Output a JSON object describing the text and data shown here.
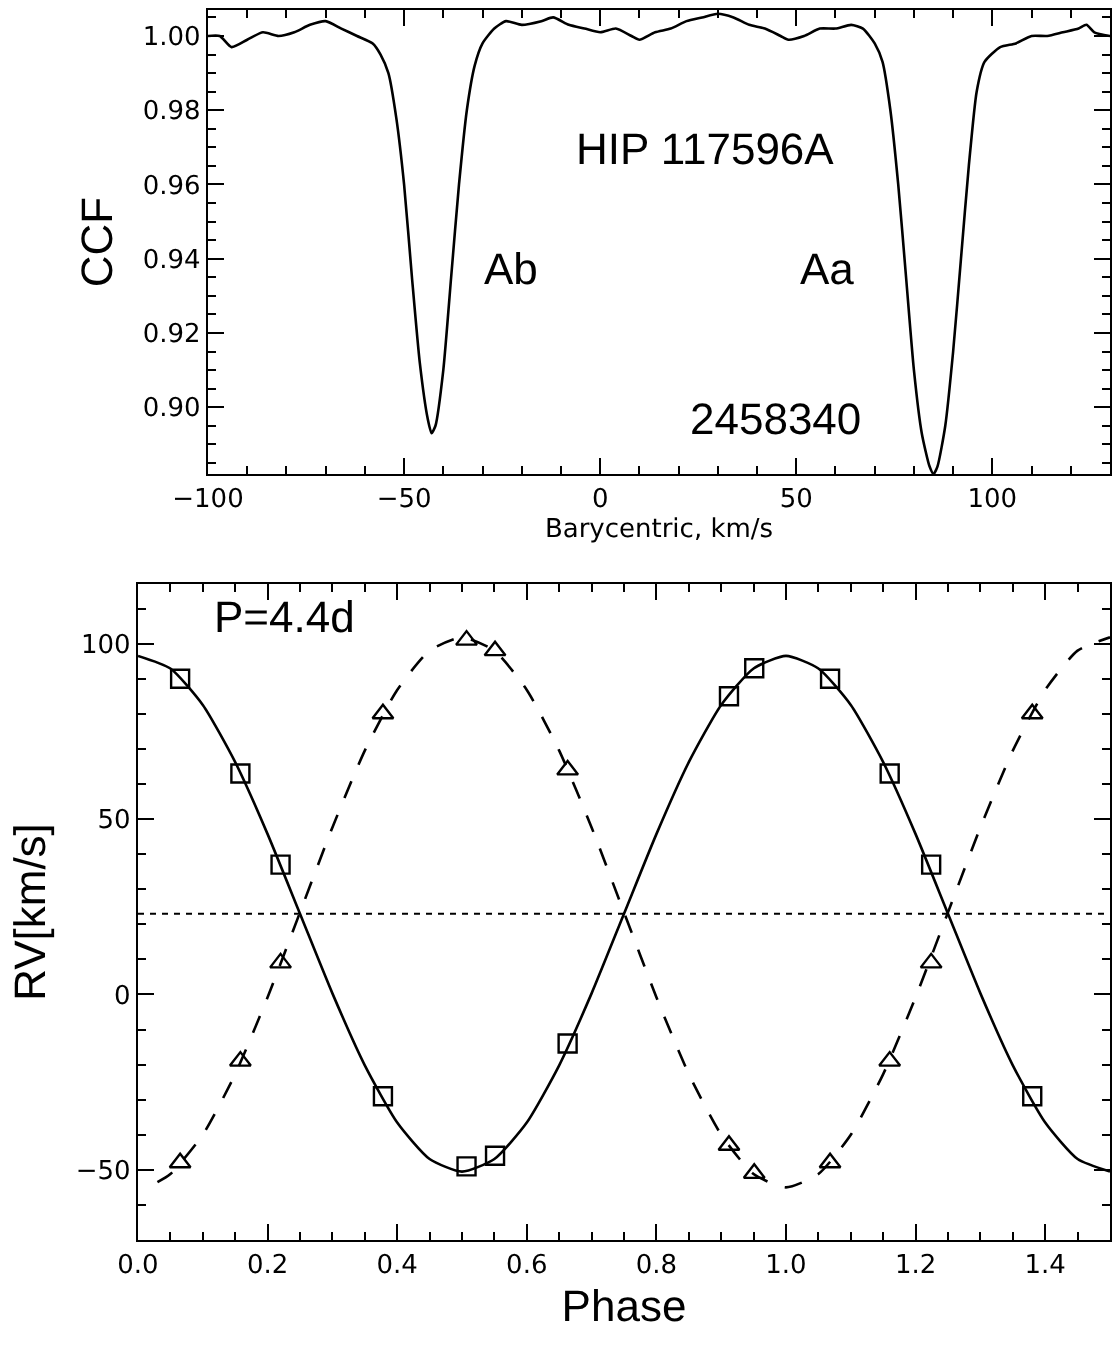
{
  "chart_data": [
    {
      "type": "line",
      "xlabel": "Barycentric, km/s",
      "ylabel": "CCF",
      "color": "#000000",
      "xlim": [
        -100,
        130
      ],
      "ylim": [
        0.882,
        1.007
      ],
      "xticks": [
        -100,
        -50,
        0,
        50,
        100
      ],
      "yticks": [
        {
          "value": 0.9,
          "label": "0.90"
        },
        {
          "value": 0.92,
          "label": "0.92"
        },
        {
          "value": 0.94,
          "label": "0.94"
        },
        {
          "value": 0.96,
          "label": "0.96"
        },
        {
          "value": 0.98,
          "label": "0.98"
        },
        {
          "value": 1.0,
          "label": "1.00"
        }
      ],
      "x": [
        -100,
        -97,
        -94,
        -90,
        -86,
        -82,
        -78,
        -74,
        -70,
        -66,
        -62,
        -58,
        -56,
        -54,
        -52,
        -50,
        -48,
        -46,
        -44,
        -43,
        -42,
        -40,
        -38,
        -36,
        -34,
        -32,
        -30,
        -27,
        -24,
        -20,
        -15,
        -12,
        -8,
        -4,
        0,
        4,
        8,
        10,
        14,
        18,
        22,
        26,
        30,
        34,
        38,
        42,
        46,
        48,
        52,
        56,
        60,
        64,
        67,
        70,
        72,
        74,
        76,
        78,
        80,
        82,
        84,
        85,
        86,
        88,
        90,
        92,
        94,
        96,
        98,
        102,
        106,
        110,
        114,
        118,
        122,
        124,
        126,
        130
      ],
      "values": [
        1.0,
        1.0,
        0.997,
        0.999,
        1.001,
        1.0,
        1.001,
        1.003,
        1.004,
        1.002,
        1.0,
        0.998,
        0.995,
        0.99,
        0.978,
        0.96,
        0.935,
        0.912,
        0.897,
        0.893,
        0.895,
        0.91,
        0.935,
        0.96,
        0.98,
        0.992,
        0.998,
        1.002,
        1.004,
        1.003,
        1.004,
        1.005,
        1.003,
        1.002,
        1.001,
        1.002,
        1.0,
        0.999,
        1.001,
        1.002,
        1.004,
        1.005,
        1.006,
        1.005,
        1.003,
        1.002,
        1.0,
        0.999,
        1.0,
        1.002,
        1.002,
        1.003,
        1.002,
        0.998,
        0.993,
        0.98,
        0.96,
        0.935,
        0.91,
        0.893,
        0.884,
        0.882,
        0.884,
        0.895,
        0.915,
        0.94,
        0.965,
        0.985,
        0.993,
        0.997,
        0.998,
        1.0,
        1.0,
        1.001,
        1.002,
        1.003,
        1.001,
        1.0
      ],
      "annotations": [
        "HIP 117596A",
        "Ab",
        "Aa",
        "2458340"
      ]
    },
    {
      "type": "scatter",
      "xlabel": "Phase",
      "ylabel": "RV[km/s]",
      "xlim": [
        0,
        1.5
      ],
      "ylim": [
        -70,
        117
      ],
      "xticks": [
        {
          "value": 0,
          "label": "0.0"
        },
        0.2,
        0.4,
        0.6,
        0.8,
        {
          "value": 1,
          "label": "1.0"
        },
        1.2,
        1.4
      ],
      "yticks": [
        -50,
        0,
        50,
        100
      ],
      "annotations": [
        "P=4.4d"
      ],
      "ref_lines": [
        {
          "axis": "y",
          "value": 23,
          "line_style": "dotted",
          "color": "#000000"
        }
      ],
      "series": [
        {
          "type": "scatter",
          "marker": "square",
          "color": "#000000",
          "x": [
            0.065,
            0.158,
            0.22,
            0.378,
            0.507,
            0.551,
            0.663,
            0.912,
            0.951,
            1.068,
            1.16,
            1.224,
            1.38
          ],
          "values": [
            90,
            63,
            37,
            -29,
            -49,
            -46,
            -14,
            85,
            93,
            90,
            63,
            37,
            -29
          ]
        },
        {
          "type": "scatter",
          "marker": "triangle",
          "color": "#000000",
          "x": [
            0.065,
            0.158,
            0.22,
            0.378,
            0.507,
            0.551,
            0.663,
            0.912,
            0.951,
            1.068,
            1.16,
            1.224,
            1.38
          ],
          "values": [
            -48,
            -19,
            9,
            80,
            101,
            98,
            64,
            -43,
            -51,
            -48,
            -19,
            9,
            80
          ]
        },
        {
          "type": "line",
          "line_style": "solid",
          "color": "#000000",
          "x": [
            0,
            0.05,
            0.1,
            0.15,
            0.2,
            0.25,
            0.3,
            0.35,
            0.4,
            0.45,
            0.5,
            0.55,
            0.6,
            0.65,
            0.7,
            0.75,
            0.8,
            0.85,
            0.9,
            0.95,
            1.0,
            1.05,
            1.1,
            1.15,
            1.2,
            1.25,
            1.3,
            1.35,
            1.4,
            1.45,
            1.5
          ],
          "values": [
            96.5,
            92.9,
            82.5,
            66.2,
            45.7,
            23,
            0.3,
            -20.2,
            -36.5,
            -46.9,
            -50.5,
            -46.9,
            -36.5,
            -20.2,
            0.3,
            23,
            45.7,
            66.2,
            82.5,
            92.9,
            96.5,
            92.9,
            82.5,
            66.2,
            45.7,
            23,
            0.3,
            -20.2,
            -36.5,
            -46.9,
            -50.5
          ]
        },
        {
          "type": "line",
          "line_style": "dashed",
          "color": "#000000",
          "x": [
            0.03,
            0.05,
            0.1,
            0.15,
            0.2,
            0.25,
            0.3,
            0.35,
            0.4,
            0.45,
            0.5,
            0.55,
            0.6,
            0.65,
            0.7,
            0.75,
            0.8,
            0.85,
            0.9,
            0.95,
            1.0,
            1.05,
            1.1,
            1.15,
            1.2,
            1.25,
            1.3,
            1.35,
            1.4,
            1.45,
            1.5
          ],
          "values": [
            -53.5,
            -51.2,
            -40,
            -22.7,
            -0.8,
            23.4,
            47.6,
            69.5,
            86.8,
            98,
            101.8,
            98,
            86.8,
            69.5,
            47.6,
            23.4,
            -0.8,
            -22.7,
            -40,
            -51.2,
            -55,
            -51.2,
            -40,
            -22.7,
            -0.8,
            23.4,
            47.6,
            69.5,
            86.8,
            98,
            101.8
          ]
        }
      ]
    }
  ]
}
